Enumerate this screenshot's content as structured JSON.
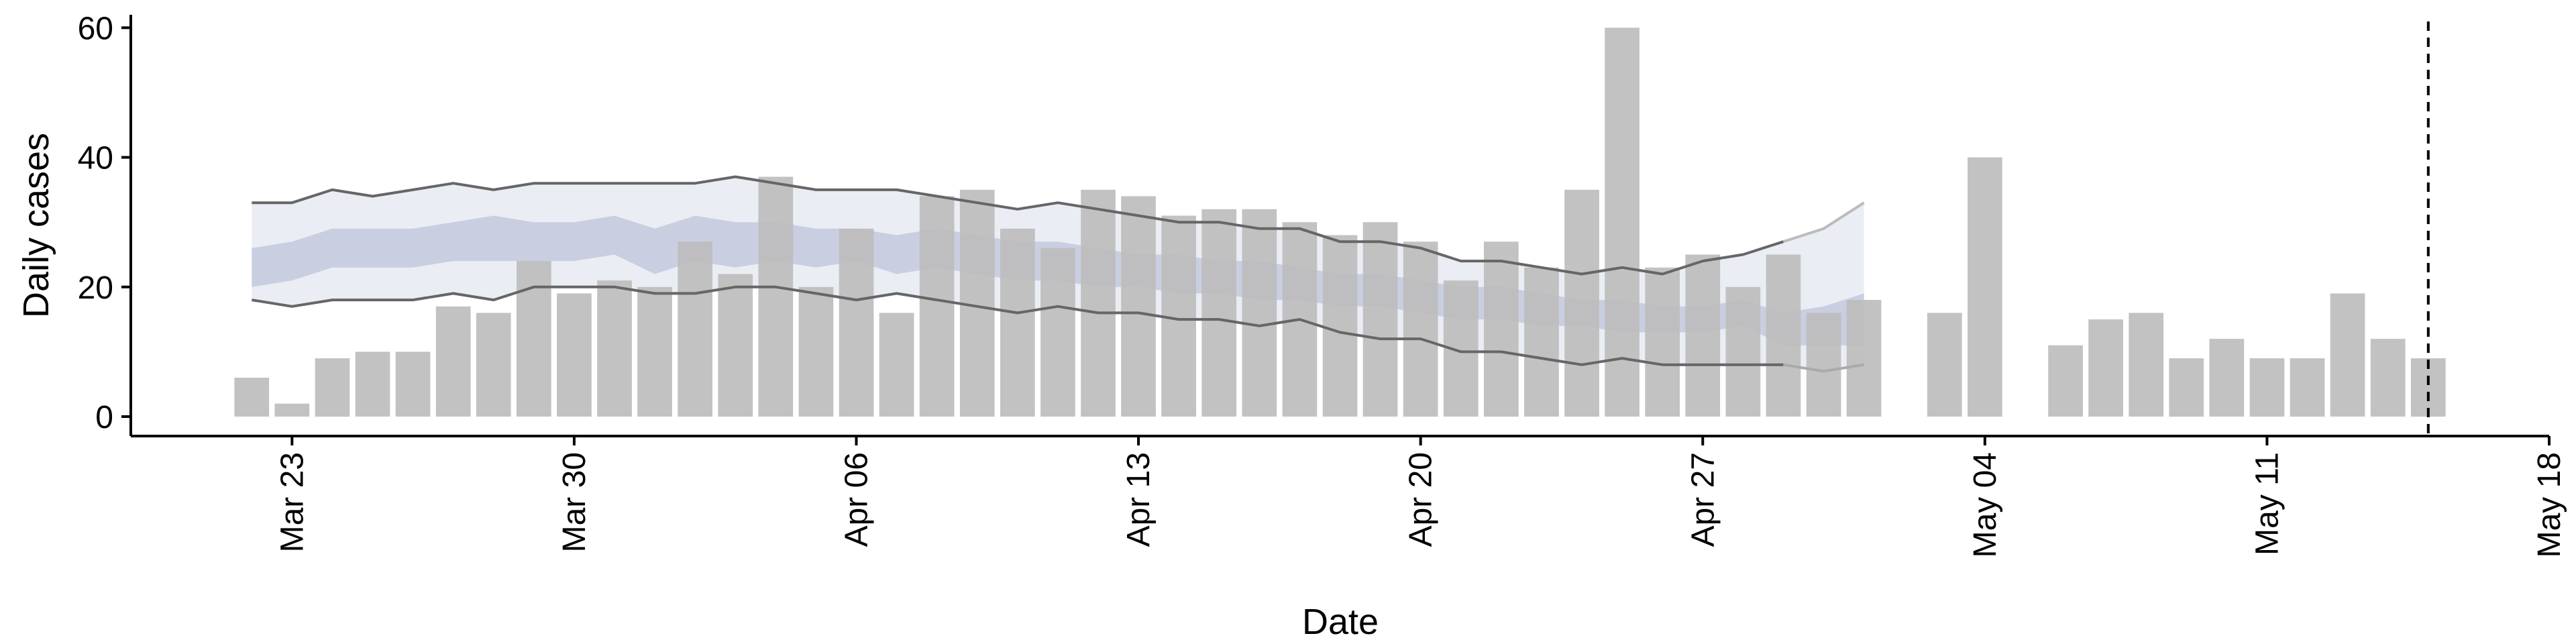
{
  "chart_data": {
    "type": "bar",
    "title": "",
    "xlabel": "Date",
    "ylabel": "Daily cases",
    "ylim": [
      -3,
      62
    ],
    "yticks": [
      0,
      20,
      40,
      60
    ],
    "x_axis": {
      "type": "date",
      "range": [
        "2020-03-19",
        "2020-05-18"
      ],
      "ticks": [
        "2020-03-23",
        "2020-03-30",
        "2020-04-06",
        "2020-04-13",
        "2020-04-20",
        "2020-04-27",
        "2020-05-04",
        "2020-05-11",
        "2020-05-18"
      ],
      "tick_labels": [
        "Mar 23",
        "Mar 30",
        "Apr 06",
        "Apr 13",
        "Apr 20",
        "Apr 27",
        "May 04",
        "May 11",
        "May 18"
      ]
    },
    "grid": false,
    "bars": {
      "color": "#bdbdbd",
      "dates": [
        "2020-03-22",
        "2020-03-23",
        "2020-03-24",
        "2020-03-25",
        "2020-03-26",
        "2020-03-27",
        "2020-03-28",
        "2020-03-29",
        "2020-03-30",
        "2020-03-31",
        "2020-04-01",
        "2020-04-02",
        "2020-04-03",
        "2020-04-04",
        "2020-04-05",
        "2020-04-06",
        "2020-04-07",
        "2020-04-08",
        "2020-04-09",
        "2020-04-10",
        "2020-04-11",
        "2020-04-12",
        "2020-04-13",
        "2020-04-14",
        "2020-04-15",
        "2020-04-16",
        "2020-04-17",
        "2020-04-18",
        "2020-04-19",
        "2020-04-20",
        "2020-04-21",
        "2020-04-22",
        "2020-04-23",
        "2020-04-24",
        "2020-04-25",
        "2020-04-26",
        "2020-04-27",
        "2020-04-28",
        "2020-04-29",
        "2020-04-30",
        "2020-05-01",
        "2020-05-03",
        "2020-05-04",
        "2020-05-06",
        "2020-05-07",
        "2020-05-08",
        "2020-05-09",
        "2020-05-10",
        "2020-05-11",
        "2020-05-12",
        "2020-05-13",
        "2020-05-14",
        "2020-05-15"
      ],
      "values": [
        6,
        2,
        9,
        10,
        10,
        17,
        16,
        24,
        19,
        21,
        20,
        27,
        22,
        37,
        20,
        29,
        16,
        34,
        35,
        29,
        26,
        35,
        34,
        31,
        32,
        32,
        30,
        28,
        30,
        27,
        21,
        27,
        23,
        35,
        60,
        23,
        25,
        20,
        25,
        16,
        18,
        16,
        40,
        11,
        15,
        16,
        9,
        12,
        9,
        9,
        19,
        12,
        9
      ]
    },
    "band_dates": [
      "2020-03-22",
      "2020-03-23",
      "2020-03-24",
      "2020-03-25",
      "2020-03-26",
      "2020-03-27",
      "2020-03-28",
      "2020-03-29",
      "2020-03-30",
      "2020-03-31",
      "2020-04-01",
      "2020-04-02",
      "2020-04-03",
      "2020-04-04",
      "2020-04-05",
      "2020-04-06",
      "2020-04-07",
      "2020-04-08",
      "2020-04-09",
      "2020-04-10",
      "2020-04-11",
      "2020-04-12",
      "2020-04-13",
      "2020-04-14",
      "2020-04-15",
      "2020-04-16",
      "2020-04-17",
      "2020-04-18",
      "2020-04-19",
      "2020-04-20",
      "2020-04-21",
      "2020-04-22",
      "2020-04-23",
      "2020-04-24",
      "2020-04-25",
      "2020-04-26",
      "2020-04-27",
      "2020-04-28",
      "2020-04-29",
      "2020-04-30",
      "2020-05-01"
    ],
    "bands": [
      {
        "role": "outer interval",
        "color": "#e8eaf2",
        "lower": [
          18,
          17,
          18,
          18,
          18,
          19,
          18,
          20,
          20,
          20,
          19,
          19,
          20,
          20,
          19,
          18,
          19,
          18,
          17,
          16,
          17,
          16,
          16,
          15,
          15,
          14,
          15,
          13,
          12,
          12,
          10,
          10,
          9,
          8,
          9,
          8,
          8,
          8,
          8,
          7,
          8
        ],
        "upper": [
          33,
          33,
          35,
          34,
          35,
          36,
          35,
          36,
          36,
          36,
          36,
          36,
          37,
          36,
          35,
          35,
          35,
          34,
          33,
          32,
          33,
          32,
          31,
          30,
          30,
          29,
          29,
          27,
          27,
          26,
          24,
          24,
          23,
          22,
          23,
          22,
          24,
          25,
          27,
          29,
          33
        ]
      },
      {
        "role": "inner interval",
        "color": "#c3c9dc",
        "lower": [
          20,
          21,
          23,
          23,
          23,
          24,
          24,
          24,
          24,
          25,
          22,
          24,
          23,
          24,
          23,
          24,
          22,
          23,
          22,
          21,
          21,
          20,
          20,
          19,
          19,
          18,
          18,
          17,
          17,
          16,
          15,
          15,
          14,
          14,
          13,
          13,
          13,
          14,
          11,
          11,
          11
        ],
        "upper": [
          26,
          27,
          29,
          29,
          29,
          30,
          31,
          30,
          30,
          31,
          29,
          31,
          30,
          30,
          29,
          29,
          28,
          29,
          28,
          27,
          27,
          26,
          25,
          25,
          24,
          24,
          23,
          22,
          22,
          21,
          20,
          20,
          19,
          18,
          18,
          17,
          17,
          18,
          16,
          17,
          19
        ]
      }
    ],
    "lines": [
      {
        "role": "lower envelope",
        "color": "#666666",
        "dates": [
          "2020-03-22",
          "2020-03-23",
          "2020-03-24",
          "2020-03-25",
          "2020-03-26",
          "2020-03-27",
          "2020-03-28",
          "2020-03-29",
          "2020-03-30",
          "2020-03-31",
          "2020-04-01",
          "2020-04-02",
          "2020-04-03",
          "2020-04-04",
          "2020-04-05",
          "2020-04-06",
          "2020-04-07",
          "2020-04-08",
          "2020-04-09",
          "2020-04-10",
          "2020-04-11",
          "2020-04-12",
          "2020-04-13",
          "2020-04-14",
          "2020-04-15",
          "2020-04-16",
          "2020-04-17",
          "2020-04-18",
          "2020-04-19",
          "2020-04-20",
          "2020-04-21",
          "2020-04-22",
          "2020-04-23",
          "2020-04-24",
          "2020-04-25",
          "2020-04-26",
          "2020-04-27",
          "2020-04-28",
          "2020-04-29"
        ],
        "values": [
          18,
          17,
          18,
          18,
          18,
          19,
          18,
          20,
          20,
          20,
          19,
          19,
          20,
          20,
          19,
          18,
          19,
          18,
          17,
          16,
          17,
          16,
          16,
          15,
          15,
          14,
          15,
          13,
          12,
          12,
          10,
          10,
          9,
          8,
          9,
          8,
          8,
          8,
          8
        ]
      },
      {
        "role": "upper envelope",
        "color": "#666666",
        "dates": [
          "2020-03-22",
          "2020-03-23",
          "2020-03-24",
          "2020-03-25",
          "2020-03-26",
          "2020-03-27",
          "2020-03-28",
          "2020-03-29",
          "2020-03-30",
          "2020-03-31",
          "2020-04-01",
          "2020-04-02",
          "2020-04-03",
          "2020-04-04",
          "2020-04-05",
          "2020-04-06",
          "2020-04-07",
          "2020-04-08",
          "2020-04-09",
          "2020-04-10",
          "2020-04-11",
          "2020-04-12",
          "2020-04-13",
          "2020-04-14",
          "2020-04-15",
          "2020-04-16",
          "2020-04-17",
          "2020-04-18",
          "2020-04-19",
          "2020-04-20",
          "2020-04-21",
          "2020-04-22",
          "2020-04-23",
          "2020-04-24",
          "2020-04-25",
          "2020-04-26",
          "2020-04-27",
          "2020-04-28",
          "2020-04-29"
        ],
        "values": [
          33,
          33,
          35,
          34,
          35,
          36,
          35,
          36,
          36,
          36,
          36,
          36,
          37,
          36,
          35,
          35,
          35,
          34,
          33,
          32,
          33,
          32,
          31,
          30,
          30,
          29,
          29,
          27,
          27,
          26,
          24,
          24,
          23,
          22,
          23,
          22,
          24,
          25,
          27
        ]
      },
      {
        "role": "lower envelope (faded)",
        "color": "#aaaaaa",
        "dates": [
          "2020-04-29",
          "2020-04-30",
          "2020-05-01"
        ],
        "values": [
          8,
          7,
          8
        ]
      },
      {
        "role": "upper envelope (faded)",
        "color": "#bbbbbb",
        "dates": [
          "2020-04-29",
          "2020-04-30",
          "2020-05-01"
        ],
        "values": [
          27,
          29,
          33
        ]
      }
    ],
    "vline": {
      "date": "2020-05-15",
      "style": "dashed",
      "color": "#000000"
    }
  }
}
